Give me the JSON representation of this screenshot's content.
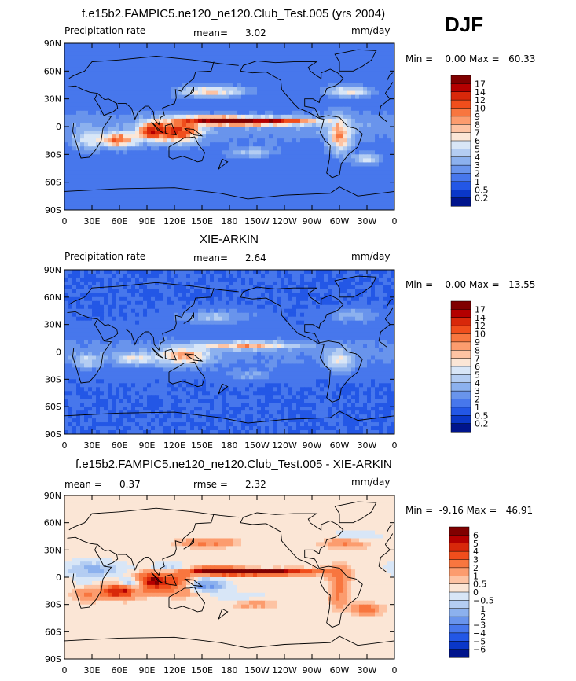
{
  "season": "DJF",
  "chart_data": [
    {
      "type": "heatmap",
      "title": "f.e15b2.FAMPIC5.ne120_ne120.Club_Test.005 (yrs 2004)",
      "left_label": "Precipitation rate",
      "stat_label": "mean=",
      "stat_value": "3.02",
      "units": "mm/day",
      "range_text": "Min =    0.00 Max =   60.33",
      "lat_ticks": [
        "90N",
        "60N",
        "30N",
        "0",
        "30S",
        "60S",
        "90S"
      ],
      "lon_ticks": [
        "0",
        "30E",
        "60E",
        "90E",
        "120E",
        "150E",
        "180",
        "150W",
        "120W",
        "90W",
        "60W",
        "30W",
        "0"
      ],
      "colorbar": {
        "labels": [
          "17",
          "14",
          "12",
          "10",
          "9",
          "8",
          "7",
          "6",
          "5",
          "4",
          "3",
          "2",
          "1",
          "0.5",
          "0.2"
        ],
        "colors": [
          "#800000",
          "#b40000",
          "#d8280a",
          "#f04e1c",
          "#f8763f",
          "#fc9c6e",
          "#fdc3a3",
          "#fbe6d6",
          "#d8e6f7",
          "#b4cdf2",
          "#8cb1ee",
          "#6994ec",
          "#4777ec",
          "#2357e6",
          "#0a37c8",
          "#00148c"
        ]
      },
      "field": "model"
    },
    {
      "type": "heatmap",
      "title": "XIE-ARKIN",
      "left_label": "Precipitation rate",
      "stat_label": "mean=",
      "stat_value": "2.64",
      "units": "mm/day",
      "range_text": "Min =    0.00 Max =   13.55",
      "lat_ticks": [
        "90N",
        "60N",
        "30N",
        "0",
        "30S",
        "60S",
        "90S"
      ],
      "lon_ticks": [
        "0",
        "30E",
        "60E",
        "90E",
        "120E",
        "150E",
        "180",
        "150W",
        "120W",
        "90W",
        "60W",
        "30W",
        "0"
      ],
      "colorbar": {
        "labels": [
          "17",
          "14",
          "12",
          "10",
          "9",
          "8",
          "7",
          "6",
          "5",
          "4",
          "3",
          "2",
          "1",
          "0.5",
          "0.2"
        ],
        "colors": [
          "#800000",
          "#b40000",
          "#d8280a",
          "#f04e1c",
          "#f8763f",
          "#fc9c6e",
          "#fdc3a3",
          "#fbe6d6",
          "#d8e6f7",
          "#b4cdf2",
          "#8cb1ee",
          "#6994ec",
          "#4777ec",
          "#2357e6",
          "#0a37c8",
          "#00148c"
        ]
      },
      "field": "obs"
    },
    {
      "type": "heatmap",
      "title": "f.e15b2.FAMPIC5.ne120_ne120.Club_Test.005 - XIE-ARKIN",
      "left_label": "mean =",
      "left_value": "0.37",
      "stat_label": "rmse =",
      "stat_value": "2.32",
      "units": "mm/day",
      "range_text": "Min =  -9.16 Max =   46.91",
      "lat_ticks": [
        "90N",
        "60N",
        "30N",
        "0",
        "30S",
        "60S",
        "90S"
      ],
      "lon_ticks": [
        "0",
        "30E",
        "60E",
        "90E",
        "120E",
        "150E",
        "180",
        "150W",
        "120W",
        "90W",
        "60W",
        "30W",
        "0"
      ],
      "colorbar": {
        "labels": [
          "6",
          "5",
          "4",
          "3",
          "2",
          "1",
          "0.5",
          "0",
          "−0.5",
          "−1",
          "−2",
          "−3",
          "−4",
          "−5",
          "−6"
        ],
        "colors": [
          "#800000",
          "#b40000",
          "#d8280a",
          "#f04e1c",
          "#f8763f",
          "#fc9c6e",
          "#fdc3a3",
          "#fbe6d6",
          "#d8e6f7",
          "#b4cdf2",
          "#8cb1ee",
          "#6994ec",
          "#4777ec",
          "#2357e6",
          "#0a37c8",
          "#00148c"
        ]
      },
      "field": "diff"
    }
  ]
}
